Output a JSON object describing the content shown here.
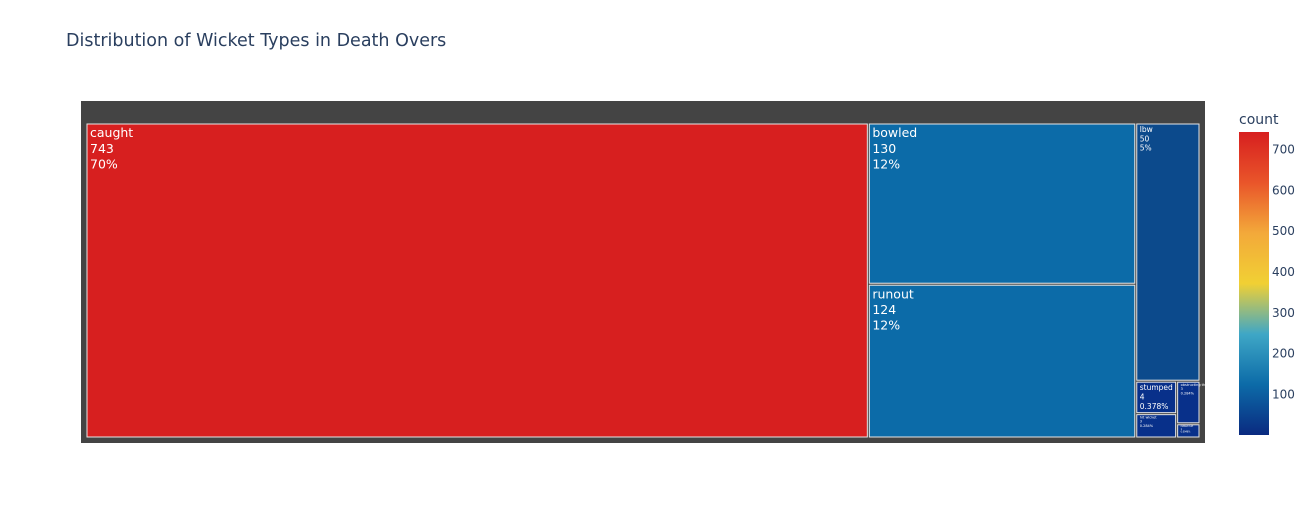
{
  "chart_data": {
    "type": "treemap",
    "title": "Distribution of Wicket Types in Death Overs",
    "items": [
      {
        "label": "caught",
        "value": 743,
        "percent": "70%",
        "color": "#d71f1f"
      },
      {
        "label": "bowled",
        "value": 130,
        "percent": "12%",
        "color": "#0c6ba8"
      },
      {
        "label": "runout",
        "value": 124,
        "percent": "12%",
        "color": "#0c6ba8"
      },
      {
        "label": "lbw",
        "value": 50,
        "percent": "5%",
        "color": "#0c4a8c"
      },
      {
        "label": "stumped",
        "value": 4,
        "percent": "0.378%",
        "color": "#08308a"
      },
      {
        "label": "obstructing the field",
        "value": 3,
        "percent": "0.284%",
        "color": "#08308a"
      },
      {
        "label": "hit wicket",
        "value": 3,
        "percent": "0.284%",
        "color": "#08308a"
      },
      {
        "label": "retired hurt",
        "value": 1,
        "percent": "0.0946%",
        "color": "#08308a"
      }
    ],
    "root_color": "#444444",
    "colorbar": {
      "title": "count",
      "min": 1,
      "max": 743,
      "ticks": [
        100,
        200,
        300,
        400,
        500,
        600,
        700
      ],
      "colorscale": [
        "#0a2a80",
        "#0c6ba8",
        "#3fa7c6",
        "#f1d034",
        "#f3a93a",
        "#e9552a",
        "#d71f1f"
      ]
    }
  }
}
